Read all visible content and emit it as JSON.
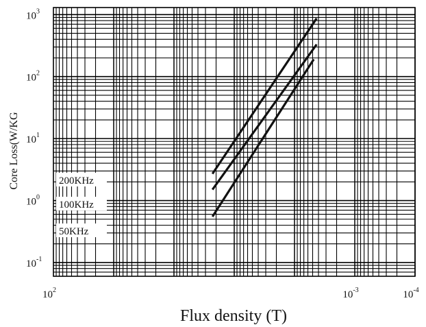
{
  "chart_data": {
    "type": "line",
    "title": "",
    "xlabel": "Flux density (T)",
    "ylabel": "Core Loss(W/KG",
    "x_scale": "log",
    "y_scale": "log",
    "xlim": [
      100,
      0.0001
    ],
    "ylim": [
      0.06,
      1300
    ],
    "grid": true,
    "x_ticks": [
      {
        "base": "10",
        "exp": "2"
      },
      {
        "base": "10",
        "exp": "-3"
      },
      {
        "base": "10",
        "exp": "-4"
      }
    ],
    "y_ticks": [
      {
        "base": "10",
        "exp": "-1"
      },
      {
        "base": "10",
        "exp": "0"
      },
      {
        "base": "10",
        "exp": "1"
      },
      {
        "base": "10",
        "exp": "2"
      },
      {
        "base": "10",
        "exp": "3"
      }
    ],
    "series": [
      {
        "name": "200KHz",
        "x": [
          0.23,
          0.0043
        ],
        "y": [
          2.7,
          870
        ]
      },
      {
        "name": "100KHz",
        "x": [
          0.23,
          0.0043
        ],
        "y": [
          1.5,
          330
        ]
      },
      {
        "name": "50KHz",
        "x": [
          0.23,
          0.0048
        ],
        "y": [
          0.55,
          190
        ]
      }
    ]
  }
}
